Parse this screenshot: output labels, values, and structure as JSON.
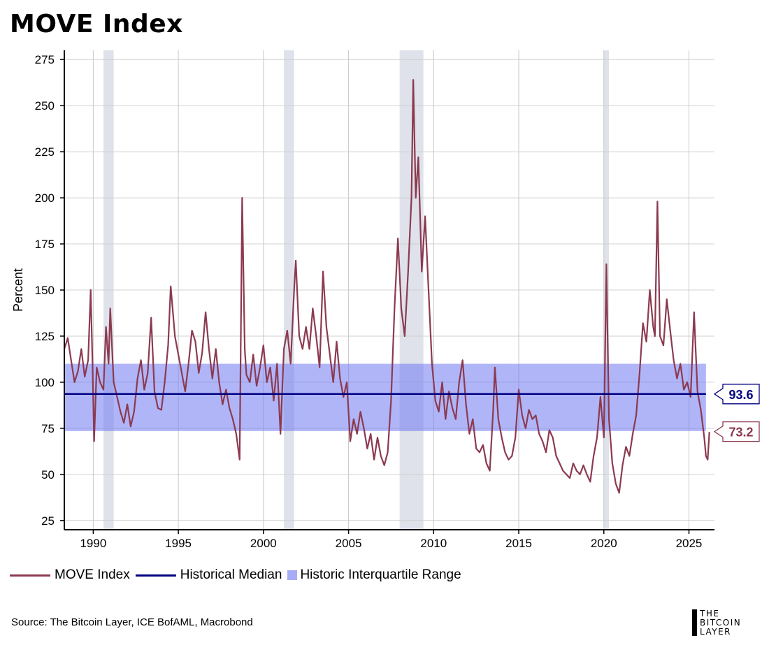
{
  "chart_data": {
    "type": "line",
    "title": "MOVE Index",
    "ylabel": "Percent",
    "xlabel": "",
    "xlim": [
      1988.3,
      2026.5
    ],
    "ylim": [
      20,
      280
    ],
    "yticks": [
      25,
      50,
      75,
      100,
      125,
      150,
      175,
      200,
      225,
      250,
      275
    ],
    "xticks": [
      1990,
      1995,
      2000,
      2005,
      2010,
      2015,
      2020,
      2025
    ],
    "recessions": [
      [
        1990.6,
        1991.2
      ],
      [
        2001.2,
        2001.8
      ],
      [
        2008.0,
        2009.4
      ],
      [
        2020.0,
        2020.3
      ]
    ],
    "median": 93.6,
    "iqr": [
      73.5,
      110.0
    ],
    "latest_value": 73.2,
    "median_label": "93.6",
    "latest_label": "73.2",
    "series": [
      {
        "name": "MOVE Index",
        "color": "#8c3a50",
        "points": [
          [
            1988.3,
            118
          ],
          [
            1988.5,
            124
          ],
          [
            1988.7,
            112
          ],
          [
            1988.9,
            100
          ],
          [
            1989.1,
            106
          ],
          [
            1989.3,
            118
          ],
          [
            1989.5,
            103
          ],
          [
            1989.7,
            112
          ],
          [
            1989.85,
            150
          ],
          [
            1989.95,
            112
          ],
          [
            1990.05,
            68
          ],
          [
            1990.2,
            108
          ],
          [
            1990.4,
            100
          ],
          [
            1990.6,
            96
          ],
          [
            1990.75,
            130
          ],
          [
            1990.9,
            110
          ],
          [
            1991.0,
            140
          ],
          [
            1991.2,
            100
          ],
          [
            1991.4,
            92
          ],
          [
            1991.6,
            84
          ],
          [
            1991.8,
            78
          ],
          [
            1992.0,
            88
          ],
          [
            1992.2,
            76
          ],
          [
            1992.4,
            84
          ],
          [
            1992.6,
            102
          ],
          [
            1992.8,
            112
          ],
          [
            1993.0,
            96
          ],
          [
            1993.2,
            105
          ],
          [
            1993.4,
            135
          ],
          [
            1993.6,
            95
          ],
          [
            1993.8,
            86
          ],
          [
            1994.0,
            85
          ],
          [
            1994.2,
            100
          ],
          [
            1994.4,
            120
          ],
          [
            1994.55,
            152
          ],
          [
            1994.8,
            125
          ],
          [
            1995.0,
            115
          ],
          [
            1995.2,
            105
          ],
          [
            1995.4,
            95
          ],
          [
            1995.6,
            110
          ],
          [
            1995.8,
            128
          ],
          [
            1996.0,
            122
          ],
          [
            1996.2,
            105
          ],
          [
            1996.4,
            116
          ],
          [
            1996.6,
            138
          ],
          [
            1996.8,
            118
          ],
          [
            1997.0,
            102
          ],
          [
            1997.2,
            118
          ],
          [
            1997.4,
            100
          ],
          [
            1997.6,
            88
          ],
          [
            1997.8,
            96
          ],
          [
            1998.0,
            86
          ],
          [
            1998.2,
            80
          ],
          [
            1998.4,
            72
          ],
          [
            1998.6,
            58
          ],
          [
            1998.75,
            200
          ],
          [
            1998.9,
            118
          ],
          [
            1999.0,
            104
          ],
          [
            1999.2,
            100
          ],
          [
            1999.4,
            115
          ],
          [
            1999.6,
            98
          ],
          [
            1999.8,
            108
          ],
          [
            2000.0,
            120
          ],
          [
            2000.2,
            100
          ],
          [
            2000.4,
            108
          ],
          [
            2000.6,
            90
          ],
          [
            2000.8,
            110
          ],
          [
            2001.0,
            72
          ],
          [
            2001.2,
            118
          ],
          [
            2001.4,
            128
          ],
          [
            2001.6,
            110
          ],
          [
            2001.8,
            150
          ],
          [
            2001.9,
            166
          ],
          [
            2002.1,
            125
          ],
          [
            2002.3,
            118
          ],
          [
            2002.5,
            130
          ],
          [
            2002.7,
            118
          ],
          [
            2002.9,
            140
          ],
          [
            2003.1,
            125
          ],
          [
            2003.3,
            108
          ],
          [
            2003.5,
            160
          ],
          [
            2003.7,
            130
          ],
          [
            2003.9,
            115
          ],
          [
            2004.1,
            100
          ],
          [
            2004.3,
            122
          ],
          [
            2004.5,
            102
          ],
          [
            2004.7,
            92
          ],
          [
            2004.9,
            100
          ],
          [
            2005.1,
            68
          ],
          [
            2005.3,
            80
          ],
          [
            2005.5,
            72
          ],
          [
            2005.7,
            84
          ],
          [
            2005.9,
            75
          ],
          [
            2006.1,
            64
          ],
          [
            2006.3,
            72
          ],
          [
            2006.5,
            58
          ],
          [
            2006.7,
            70
          ],
          [
            2006.9,
            60
          ],
          [
            2007.1,
            55
          ],
          [
            2007.3,
            62
          ],
          [
            2007.5,
            90
          ],
          [
            2007.7,
            140
          ],
          [
            2007.9,
            178
          ],
          [
            2008.1,
            140
          ],
          [
            2008.3,
            125
          ],
          [
            2008.5,
            160
          ],
          [
            2008.7,
            200
          ],
          [
            2008.8,
            264
          ],
          [
            2008.95,
            200
          ],
          [
            2009.1,
            222
          ],
          [
            2009.3,
            160
          ],
          [
            2009.5,
            190
          ],
          [
            2009.7,
            150
          ],
          [
            2009.9,
            110
          ],
          [
            2010.1,
            90
          ],
          [
            2010.3,
            84
          ],
          [
            2010.5,
            100
          ],
          [
            2010.7,
            80
          ],
          [
            2010.9,
            95
          ],
          [
            2011.1,
            86
          ],
          [
            2011.3,
            80
          ],
          [
            2011.5,
            100
          ],
          [
            2011.7,
            112
          ],
          [
            2011.9,
            88
          ],
          [
            2012.1,
            72
          ],
          [
            2012.3,
            80
          ],
          [
            2012.5,
            64
          ],
          [
            2012.7,
            62
          ],
          [
            2012.9,
            66
          ],
          [
            2013.1,
            56
          ],
          [
            2013.3,
            52
          ],
          [
            2013.5,
            85
          ],
          [
            2013.6,
            108
          ],
          [
            2013.8,
            80
          ],
          [
            2014.0,
            70
          ],
          [
            2014.2,
            62
          ],
          [
            2014.4,
            58
          ],
          [
            2014.6,
            60
          ],
          [
            2014.8,
            70
          ],
          [
            2015.0,
            96
          ],
          [
            2015.2,
            82
          ],
          [
            2015.4,
            75
          ],
          [
            2015.6,
            85
          ],
          [
            2015.8,
            80
          ],
          [
            2016.0,
            82
          ],
          [
            2016.2,
            72
          ],
          [
            2016.4,
            68
          ],
          [
            2016.6,
            62
          ],
          [
            2016.8,
            74
          ],
          [
            2017.0,
            70
          ],
          [
            2017.2,
            60
          ],
          [
            2017.4,
            56
          ],
          [
            2017.6,
            52
          ],
          [
            2017.8,
            50
          ],
          [
            2018.0,
            48
          ],
          [
            2018.2,
            56
          ],
          [
            2018.4,
            52
          ],
          [
            2018.6,
            50
          ],
          [
            2018.8,
            55
          ],
          [
            2019.0,
            50
          ],
          [
            2019.2,
            46
          ],
          [
            2019.4,
            60
          ],
          [
            2019.6,
            70
          ],
          [
            2019.8,
            92
          ],
          [
            2020.0,
            70
          ],
          [
            2020.15,
            164
          ],
          [
            2020.3,
            80
          ],
          [
            2020.5,
            56
          ],
          [
            2020.7,
            45
          ],
          [
            2020.9,
            40
          ],
          [
            2021.1,
            55
          ],
          [
            2021.3,
            65
          ],
          [
            2021.5,
            60
          ],
          [
            2021.7,
            72
          ],
          [
            2021.9,
            82
          ],
          [
            2022.1,
            105
          ],
          [
            2022.3,
            132
          ],
          [
            2022.5,
            122
          ],
          [
            2022.7,
            150
          ],
          [
            2022.9,
            130
          ],
          [
            2023.0,
            125
          ],
          [
            2023.15,
            198
          ],
          [
            2023.3,
            125
          ],
          [
            2023.5,
            120
          ],
          [
            2023.7,
            145
          ],
          [
            2023.9,
            128
          ],
          [
            2024.1,
            112
          ],
          [
            2024.3,
            102
          ],
          [
            2024.5,
            110
          ],
          [
            2024.7,
            96
          ],
          [
            2024.9,
            100
          ],
          [
            2025.1,
            92
          ],
          [
            2025.3,
            138
          ],
          [
            2025.5,
            95
          ],
          [
            2025.7,
            85
          ],
          [
            2025.9,
            70
          ],
          [
            2026.0,
            60
          ],
          [
            2026.1,
            58
          ],
          [
            2026.2,
            73
          ]
        ]
      }
    ],
    "legend": [
      {
        "label": "MOVE Index",
        "kind": "line",
        "color": "#8c3a50"
      },
      {
        "label": "Historical Median",
        "kind": "line",
        "color": "#000080"
      },
      {
        "label": "Historic Interquartile Range",
        "kind": "box",
        "color": "#a7acf7"
      }
    ]
  },
  "source_text": "Source: The Bitcoin Layer, ICE BofAML, Macrobond",
  "logo_lines": [
    "THE",
    "BITCOIN",
    "LAYER"
  ]
}
